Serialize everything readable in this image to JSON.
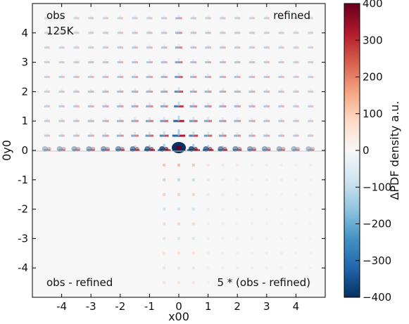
{
  "chart_data": {
    "type": "heatmap",
    "title": "",
    "xlabel": "x00",
    "ylabel": "0y0",
    "xlim": [
      -5,
      5
    ],
    "ylim": [
      -5,
      5
    ],
    "xticks": [
      "-4",
      "-3",
      "-2",
      "-1",
      "0",
      "1",
      "2",
      "3",
      "4"
    ],
    "yticks": [
      "-4",
      "-3",
      "-2",
      "-1",
      "0",
      "1",
      "2",
      "3",
      "4"
    ],
    "quadrant_labels": {
      "top_left_line1": "obs",
      "top_left_line2": "125K",
      "top_right": "refined",
      "bottom_left": "obs - refined",
      "bottom_right": "5 * (obs - refined)"
    },
    "colorbar": {
      "label": "ΔPDF density a.u.",
      "range": [
        -400,
        400
      ],
      "ticks": [
        "400",
        "300",
        "200",
        "100",
        "0",
        "−100",
        "−200",
        "−300",
        "−400"
      ],
      "colormap": "RdBu_r"
    }
  }
}
